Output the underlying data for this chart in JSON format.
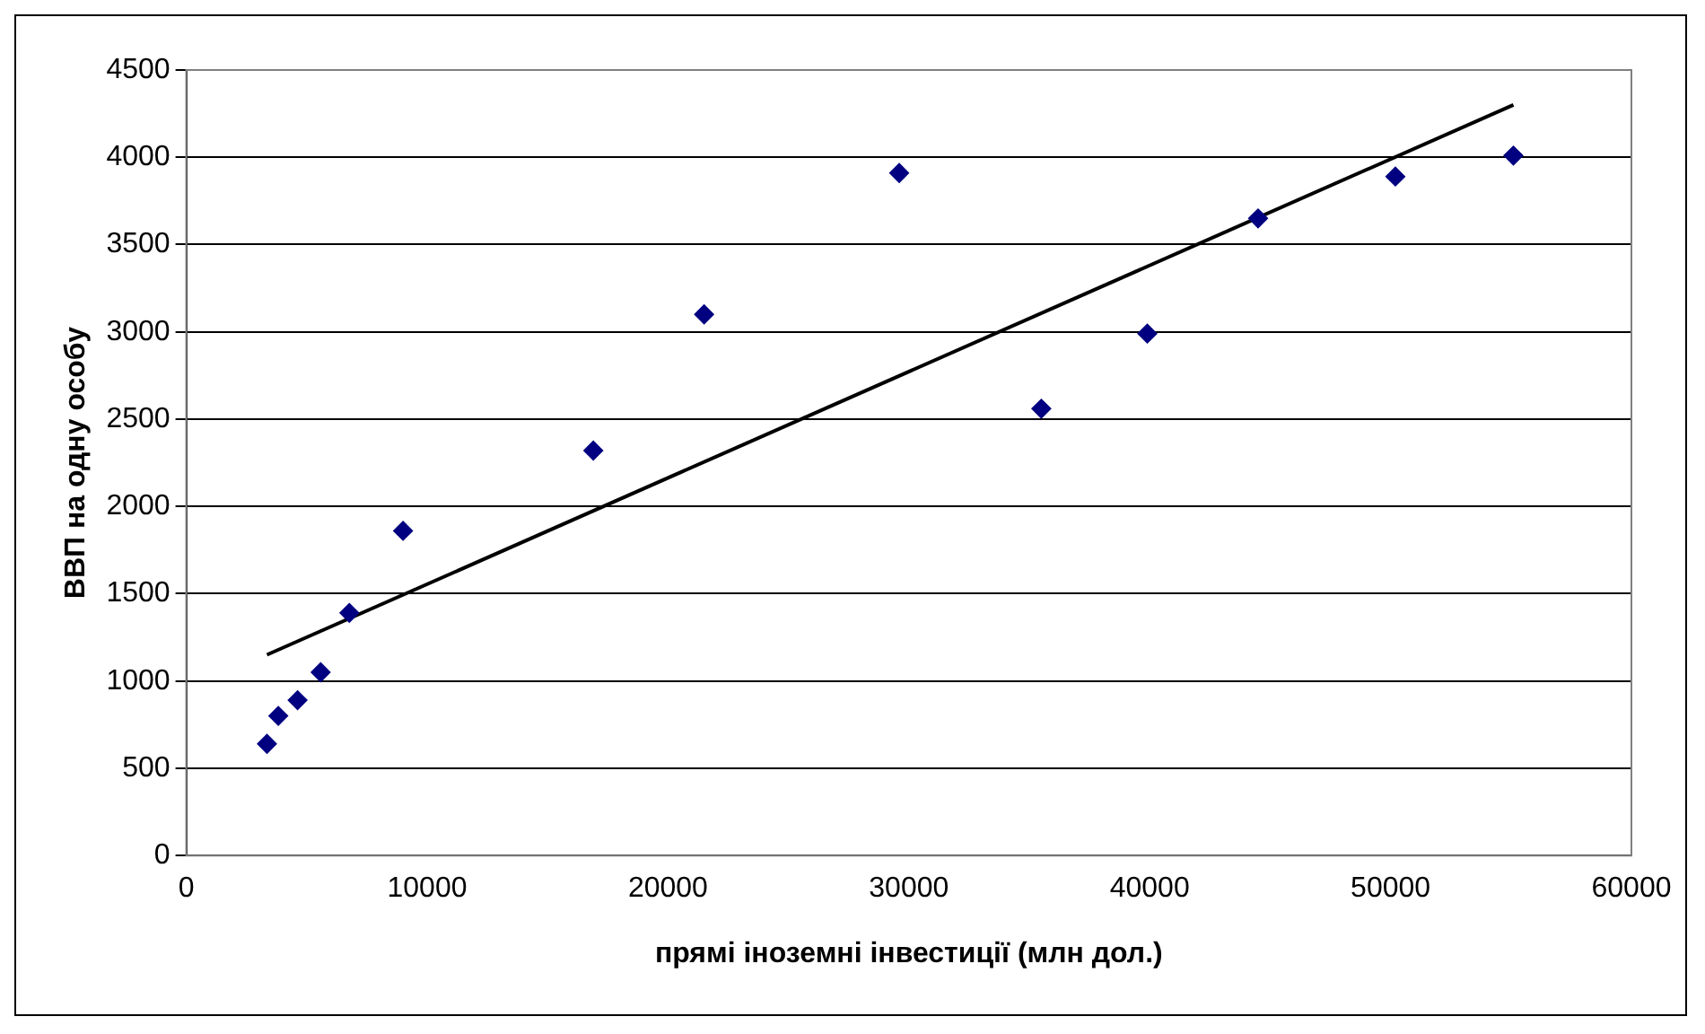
{
  "chart_data": {
    "type": "scatter",
    "xlabel": "прямі іноземні інвестиції (млн дол.)",
    "ylabel": "ВВП на одну особу",
    "x": [
      3350,
      3820,
      4620,
      5580,
      6770,
      9000,
      16900,
      21500,
      29600,
      35500,
      39900,
      44500,
      50200,
      55100
    ],
    "series": [
      {
        "type": "scatter",
        "color": "#000080",
        "marker": "diamond",
        "values": [
          640,
          800,
          890,
          1050,
          1390,
          1860,
          2320,
          3100,
          3910,
          2560,
          2990,
          3650,
          3890,
          4010
        ]
      },
      {
        "type": "line",
        "color": "#000000",
        "marker": "none",
        "line_style": "solid",
        "x": [
          3350,
          55100
        ],
        "values": [
          1150,
          4300
        ]
      }
    ],
    "xlim": [
      0,
      60000
    ],
    "xticks": [
      0,
      10000,
      20000,
      30000,
      40000,
      50000,
      60000
    ],
    "ylim": [
      0,
      4500
    ],
    "yticks": [
      0,
      500,
      1000,
      1500,
      2000,
      2500,
      3000,
      3500,
      4000,
      4500
    ],
    "grid": "y",
    "legend": false
  }
}
